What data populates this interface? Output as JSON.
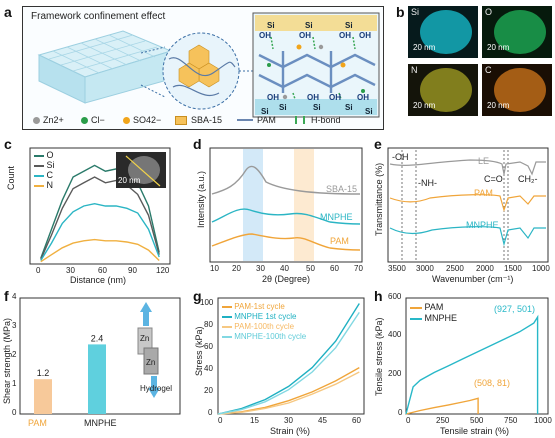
{
  "panel_letters": {
    "a": "a",
    "b": "b",
    "c": "c",
    "d": "d",
    "e": "e",
    "f": "f",
    "g": "g",
    "h": "h"
  },
  "panel_a": {
    "title": "Framework confinement effect",
    "si_labels": [
      "Si",
      "Si",
      "Si",
      "Si",
      "Si",
      "Si",
      "Si",
      "Si"
    ],
    "oh_labels": [
      "OH",
      "OH",
      "OH",
      "OH",
      "OH",
      "OH",
      "OH",
      "OH"
    ],
    "legend": [
      "Zn2+",
      "Cl−",
      "SO42−",
      "SBA-15",
      "PAM",
      "H-bond"
    ],
    "colors": {
      "zn": "#9a9a9a",
      "cl": "#2a9d4a",
      "so4": "#f1a51b",
      "frame": "#9ed7e8",
      "pam": "#6a86b0",
      "hbond": "#3aa856"
    }
  },
  "panel_b": {
    "tiles": [
      {
        "label": "Si",
        "scale": "20 nm",
        "color": "#17c1d1"
      },
      {
        "label": "O",
        "scale": "20 nm",
        "color": "#1fb45a"
      },
      {
        "label": "N",
        "scale": "20 nm",
        "color": "#c9c42a"
      },
      {
        "label": "C",
        "scale": "20 nm",
        "color": "#e07f1c"
      }
    ]
  },
  "panel_c": {
    "ylabel": "Count",
    "xlabel": "Distance (nm)",
    "xticks": [
      "0",
      "30",
      "60",
      "90",
      "120"
    ],
    "inset_scale": "20 nm",
    "legend": [
      "O",
      "Si",
      "C",
      "N"
    ]
  },
  "panel_d": {
    "ylabel": "Intensity (a.u.)",
    "xlabel": "2θ (Degree)",
    "xticks": [
      "10",
      "20",
      "30",
      "40",
      "50",
      "60",
      "70"
    ],
    "series_labels": [
      "SBA-15",
      "MNPHE",
      "PAM"
    ]
  },
  "panel_e": {
    "ylabel": "Transmittance (%)",
    "xlabel": "Wavenumber (cm⁻¹)",
    "xticks": [
      "3500",
      "3000",
      "2500",
      "2000",
      "1500",
      "1000"
    ],
    "annotations": [
      "-OH",
      "-NH-",
      "C=O",
      "CH₂-"
    ],
    "series_labels": [
      "LE",
      "PAM",
      "MNPHE"
    ]
  },
  "panel_f": {
    "ylabel": "Shear strength (MPa)",
    "yticks": [
      "0",
      "1",
      "2",
      "3",
      "4"
    ],
    "categories": [
      "PAM",
      "MNPHE"
    ],
    "value_labels": [
      "1.2",
      "2.4"
    ],
    "diagram_labels": [
      "Zn",
      "Zn",
      "Hydrogel"
    ]
  },
  "panel_g": {
    "ylabel": "Stress (kPa)",
    "xlabel": "Strain (%)",
    "xticks": [
      "0",
      "15",
      "30",
      "45",
      "60"
    ],
    "yticks": [
      "0",
      "20",
      "40",
      "60",
      "80",
      "100"
    ],
    "legend": [
      "PAM-1st cycle",
      "MNPHE 1st cycle",
      "PAM-100th cycle",
      "MNPHE-100th cycle"
    ]
  },
  "panel_h": {
    "ylabel": "Tensile stress (kPa)",
    "xlabel": "Tensile strain (%)",
    "xticks": [
      "0",
      "250",
      "500",
      "750",
      "1000"
    ],
    "yticks": [
      "0",
      "200",
      "400",
      "600"
    ],
    "legend": [
      "PAM",
      "MNPHE"
    ],
    "point_labels": [
      "(927, 501)",
      "(508, 81)"
    ]
  },
  "chart_data": [
    {
      "type": "bar",
      "panel": "f",
      "categories": [
        "PAM",
        "MNPHE"
      ],
      "values": [
        1.2,
        2.4
      ],
      "ylabel": "Shear strength (MPa)",
      "ylim": [
        0,
        4
      ],
      "colors": [
        "#f7c99a",
        "#5fd0de"
      ]
    },
    {
      "type": "line",
      "panel": "h",
      "xlabel": "Tensile strain (%)",
      "ylabel": "Tensile stress (kPa)",
      "xlim": [
        0,
        1000
      ],
      "ylim": [
        0,
        600
      ],
      "series": [
        {
          "name": "PAM",
          "color": "#f0a53a",
          "x": [
            0,
            100,
            200,
            300,
            400,
            450,
            508,
            508
          ],
          "y": [
            0,
            18,
            33,
            47,
            62,
            70,
            81,
            0
          ]
        },
        {
          "name": "MNPHE",
          "color": "#28b8c8",
          "x": [
            0,
            50,
            100,
            200,
            300,
            400,
            500,
            600,
            700,
            800,
            900,
            927,
            927
          ],
          "y": [
            0,
            140,
            175,
            215,
            250,
            285,
            320,
            355,
            390,
            425,
            470,
            501,
            0
          ]
        }
      ]
    },
    {
      "type": "line",
      "panel": "g",
      "xlabel": "Strain (%)",
      "ylabel": "Stress (kPa)",
      "xlim": [
        0,
        62
      ],
      "ylim": [
        0,
        105
      ],
      "series": [
        {
          "name": "PAM-1st cycle",
          "color": "#f0a53a",
          "x": [
            0,
            10,
            20,
            30,
            40,
            50,
            60
          ],
          "y": [
            0,
            2,
            6,
            12,
            20,
            30,
            42
          ]
        },
        {
          "name": "MNPHE 1st cycle",
          "color": "#1fb0c2",
          "x": [
            0,
            10,
            20,
            30,
            40,
            50,
            60
          ],
          "y": [
            0,
            5,
            13,
            25,
            42,
            66,
            100
          ]
        },
        {
          "name": "PAM-100th cycle",
          "color": "#f6c882",
          "x": [
            0,
            10,
            20,
            30,
            40,
            50,
            60
          ],
          "y": [
            0,
            1.5,
            5,
            10,
            18,
            27,
            38
          ]
        },
        {
          "name": "MNPHE-100th cycle",
          "color": "#82d8e2",
          "x": [
            0,
            10,
            20,
            30,
            40,
            50,
            60
          ],
          "y": [
            0,
            4,
            11,
            22,
            38,
            60,
            92
          ]
        }
      ]
    },
    {
      "type": "line",
      "panel": "c",
      "xlabel": "Distance (nm)",
      "ylabel": "Count",
      "xlim": [
        0,
        130
      ],
      "series": [
        {
          "name": "O",
          "color": "#2a7a6a",
          "x": [
            10,
            20,
            30,
            40,
            50,
            60,
            70,
            80,
            90,
            100,
            110,
            120
          ],
          "y": [
            0.05,
            0.3,
            0.55,
            0.75,
            0.8,
            0.85,
            0.8,
            0.82,
            0.78,
            0.7,
            0.5,
            0.1
          ]
        },
        {
          "name": "Si",
          "color": "#5a5a5a",
          "x": [
            10,
            20,
            30,
            40,
            50,
            60,
            70,
            80,
            90,
            100,
            110,
            120
          ],
          "y": [
            0.04,
            0.25,
            0.48,
            0.65,
            0.7,
            0.75,
            0.7,
            0.72,
            0.68,
            0.6,
            0.42,
            0.08
          ]
        },
        {
          "name": "C",
          "color": "#2bb5c4",
          "x": [
            10,
            20,
            30,
            40,
            50,
            60,
            70,
            80,
            90,
            100,
            110,
            120
          ],
          "y": [
            0.03,
            0.18,
            0.35,
            0.45,
            0.5,
            0.52,
            0.5,
            0.5,
            0.48,
            0.44,
            0.3,
            0.06
          ]
        },
        {
          "name": "N",
          "color": "#f0b040",
          "x": [
            10,
            20,
            30,
            40,
            50,
            60,
            70,
            80,
            90,
            100,
            110,
            120
          ],
          "y": [
            0.02,
            0.08,
            0.14,
            0.18,
            0.2,
            0.21,
            0.2,
            0.2,
            0.19,
            0.17,
            0.12,
            0.03
          ]
        }
      ]
    }
  ]
}
